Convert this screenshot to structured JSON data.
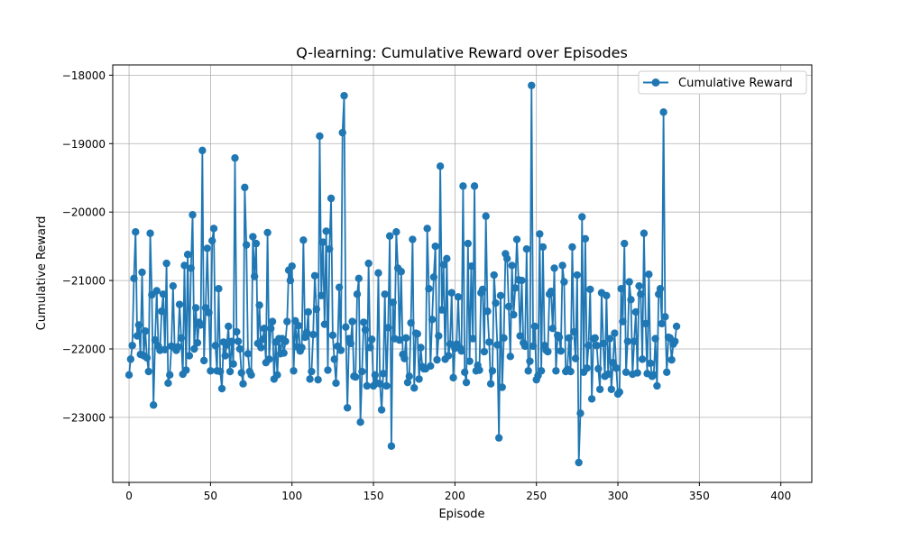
{
  "chart_data": {
    "type": "line",
    "title": "Q-learning: Cumulative Reward over Episodes",
    "xlabel": "Episode",
    "ylabel": "Cumulative Reward",
    "xlim": [
      -10,
      419
    ],
    "ylim": [
      -23950,
      -17850
    ],
    "xticks": [
      0,
      50,
      100,
      150,
      200,
      250,
      300,
      350,
      400
    ],
    "yticks": [
      -23000,
      -22000,
      -21000,
      -20000,
      -19000,
      -18000
    ],
    "grid": true,
    "legend_position": "top-right",
    "marker": "circle",
    "series": [
      {
        "name": "Cumulative Reward",
        "color": "#1f77b4",
        "values": [
          -22380,
          -22150,
          -21950,
          -20970,
          -20290,
          -21810,
          -21650,
          -22080,
          -20880,
          -22100,
          -21740,
          -22130,
          -22330,
          -20310,
          -21210,
          -22820,
          -21870,
          -21150,
          -21960,
          -22020,
          -21450,
          -21200,
          -22010,
          -20750,
          -22500,
          -22380,
          -21960,
          -21080,
          -21980,
          -22020,
          -21970,
          -21350,
          -21840,
          -22370,
          -20780,
          -22310,
          -20620,
          -22100,
          -20820,
          -20040,
          -22000,
          -21400,
          -21910,
          -21610,
          -21650,
          -19100,
          -22170,
          -21400,
          -20530,
          -21470,
          -22320,
          -20420,
          -20240,
          -21950,
          -22320,
          -21120,
          -22330,
          -22580,
          -21900,
          -22100,
          -21940,
          -21670,
          -22330,
          -21890,
          -22220,
          -19210,
          -21750,
          -21890,
          -22000,
          -22350,
          -22510,
          -19640,
          -20480,
          -22070,
          -22330,
          -22380,
          -20360,
          -20940,
          -20460,
          -21920,
          -21360,
          -21980,
          -21860,
          -21700,
          -22200,
          -20300,
          -22150,
          -21700,
          -21600,
          -22440,
          -21900,
          -22380,
          -21850,
          -22070,
          -21850,
          -22060,
          -21890,
          -21600,
          -20850,
          -21000,
          -20790,
          -22320,
          -21590,
          -21970,
          -21660,
          -22030,
          -21980,
          -20410,
          -21830,
          -21760,
          -21460,
          -22440,
          -22330,
          -21790,
          -20930,
          -21420,
          -22450,
          -18890,
          -21220,
          -20440,
          -21640,
          -20280,
          -22310,
          -20540,
          -19800,
          -21800,
          -22150,
          -22500,
          -21960,
          -21100,
          -22020,
          -18840,
          -18300,
          -21680,
          -22860,
          -21850,
          -21920,
          -21600,
          -22400,
          -22410,
          -21200,
          -20970,
          -23070,
          -22330,
          -21610,
          -21720,
          -22540,
          -20750,
          -21980,
          -21860,
          -22540,
          -22380,
          -22500,
          -20890,
          -22510,
          -22890,
          -22360,
          -21200,
          -22540,
          -21690,
          -20350,
          -23420,
          -21320,
          -21850,
          -20290,
          -20820,
          -21870,
          -20870,
          -22080,
          -22140,
          -21840,
          -22490,
          -22400,
          -21620,
          -20400,
          -22570,
          -21770,
          -21780,
          -22440,
          -21980,
          -22260,
          -22290,
          -22290,
          -20240,
          -21120,
          -22250,
          -21570,
          -20950,
          -20500,
          -22160,
          -21810,
          -19330,
          -21430,
          -20770,
          -22150,
          -20680,
          -22100,
          -21930,
          -21180,
          -22420,
          -21990,
          -21930,
          -21240,
          -21980,
          -22030,
          -19620,
          -22340,
          -22490,
          -20460,
          -22180,
          -20790,
          -21850,
          -19620,
          -22320,
          -22240,
          -22310,
          -21180,
          -21130,
          -22040,
          -20060,
          -21450,
          -21900,
          -22510,
          -22320,
          -20920,
          -21330,
          -21940,
          -23300,
          -21220,
          -22560,
          -21840,
          -20610,
          -20680,
          -21380,
          -22110,
          -20780,
          -21500,
          -21110,
          -20400,
          -20990,
          -21810,
          -21000,
          -21910,
          -21960,
          -20540,
          -22320,
          -22180,
          -18150,
          -21960,
          -21670,
          -22450,
          -22390,
          -20320,
          -22320,
          -20510,
          -21950,
          -22020,
          -22040,
          -21200,
          -21160,
          -21700,
          -20820,
          -22320,
          -21800,
          -21830,
          -22030,
          -20780,
          -21020,
          -22330,
          -22300,
          -21840,
          -22330,
          -20510,
          -21750,
          -22140,
          -20920,
          -23660,
          -22940,
          -20070,
          -22340,
          -20390,
          -22280,
          -21950,
          -21130,
          -22730,
          -21850,
          -21840,
          -21950,
          -22290,
          -22590,
          -21180,
          -21920,
          -22400,
          -21220,
          -22370,
          -21850,
          -22590,
          -22200,
          -21770,
          -22280,
          -22660,
          -22630,
          -21120,
          -21600,
          -20460,
          -22340,
          -21890,
          -21020,
          -21280,
          -22370,
          -21890,
          -21460,
          -22350,
          -21080,
          -21200,
          -22150,
          -20310,
          -21630,
          -22360,
          -20910,
          -22210,
          -22400,
          -22380,
          -21850,
          -22540,
          -21200,
          -21120,
          -21630,
          -18540,
          -21530,
          -22340,
          -21830,
          -21840,
          -22160,
          -21930,
          -21890,
          -21670
        ]
      }
    ]
  }
}
